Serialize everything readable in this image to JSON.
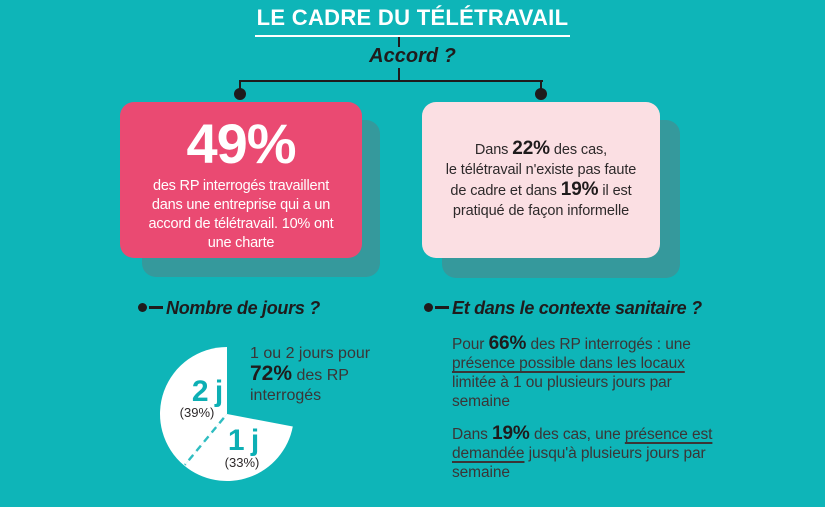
{
  "header": {
    "title": "LE CADRE DU TÉLÉTRAVAIL",
    "question": "Accord ?"
  },
  "cards": {
    "accord": {
      "stat": "49%",
      "line1": "des RP interrogés travaillent",
      "line2": "dans une entreprise qui a un",
      "line3": "accord de télétravail. 10% ont",
      "line4": "une charte"
    },
    "no_accord": {
      "seg1": "Dans ",
      "stat1": "22%",
      "seg2": " des cas,",
      "line2": "le télétravail n'existe pas faute",
      "seg3": "de cadre et dans ",
      "stat2": "19%",
      "seg4": " il est",
      "line4": "pratiqué de façon informelle"
    }
  },
  "days_section": {
    "heading": "Nombre de jours ?",
    "note": {
      "line1": "1 ou 2 jours pour",
      "stat": "72%",
      "seg": " des RP",
      "line3": "interrogés"
    }
  },
  "sanitary_section": {
    "heading": "Et dans le contexte sanitaire ?",
    "para1": {
      "seg1": "Pour ",
      "stat": "66%",
      "seg2": " des RP interrogés : une",
      "underlined": "présence possible dans les locaux",
      "line3": "limitée à 1 ou plusieurs jours par",
      "line4": "semaine"
    },
    "para2": {
      "seg1": "Dans ",
      "stat": "19%",
      "seg2": " des cas, une ",
      "underlined1": "présence est",
      "underlined2": "demandée",
      "seg3": " jusqu'à plusieurs jours par",
      "line3": "semaine"
    }
  },
  "chart_data": {
    "type": "pie",
    "title": "Nombre de jours ?",
    "start_clock_deg": 0,
    "slices": [
      {
        "label": "",
        "sub": "",
        "pct": 28,
        "visible": false
      },
      {
        "label": "1 j",
        "sub": "(33%)",
        "pct": 33,
        "visible": true
      },
      {
        "label": "2 j",
        "sub": "(39%)",
        "pct": 39,
        "visible": true
      }
    ],
    "annotation": "1 ou 2 jours pour 72% des RP interrogés",
    "legend_position": "none",
    "colors": {
      "slice_fill": "#FFFFFF",
      "divider": "#2FBDC1",
      "label_teal": "#0DAFB4"
    }
  },
  "colors": {
    "background": "#0EB5B8",
    "card_pink": "#EA4A72",
    "card_light_pink": "#FBDFE3",
    "card_shadow": "#35999C",
    "ink": "#1F1B1C",
    "body_text": "#3B3536",
    "white": "#FFFFFF"
  }
}
